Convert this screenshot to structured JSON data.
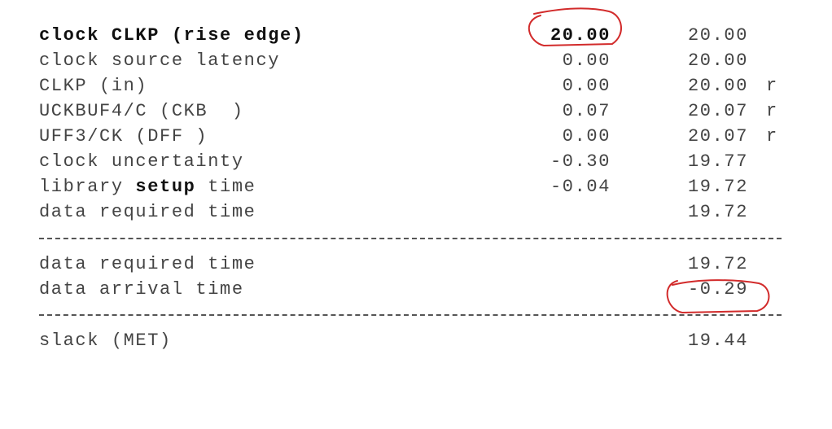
{
  "report": {
    "rows": [
      {
        "desc_pre": "",
        "desc_bold": "clock CLKP (rise edge)",
        "desc_post": "",
        "incr": "20.00",
        "path": "20.00",
        "edge": ""
      },
      {
        "desc_pre": "clock source latency",
        "desc_bold": "",
        "desc_post": "",
        "incr": "0.00",
        "path": "20.00",
        "edge": ""
      },
      {
        "desc_pre": "CLKP (in)",
        "desc_bold": "",
        "desc_post": "",
        "incr": "0.00",
        "path": "20.00",
        "edge": "r"
      },
      {
        "desc_pre": "UCKBUF4/C (CKB  )",
        "desc_bold": "",
        "desc_post": "",
        "incr": "0.07",
        "path": "20.07",
        "edge": "r"
      },
      {
        "desc_pre": "UFF3/CK (DFF )",
        "desc_bold": "",
        "desc_post": "",
        "incr": "0.00",
        "path": "20.07",
        "edge": "r"
      },
      {
        "desc_pre": "clock uncertainty",
        "desc_bold": "",
        "desc_post": "",
        "incr": "-0.30",
        "path": "19.77",
        "edge": ""
      },
      {
        "desc_pre": "library ",
        "desc_bold": "setup",
        "desc_post": " time",
        "incr": "-0.04",
        "path": "19.72",
        "edge": ""
      },
      {
        "desc_pre": "data required time",
        "desc_bold": "",
        "desc_post": "",
        "incr": "",
        "path": "19.72",
        "edge": ""
      }
    ],
    "summary": [
      {
        "label": "data required time",
        "value": "19.72"
      },
      {
        "label": "data arrival time",
        "value": "-0.29"
      }
    ],
    "slack": {
      "label": "slack (MET)",
      "value": "19.44"
    }
  },
  "annotation_color": "#d22b2b"
}
